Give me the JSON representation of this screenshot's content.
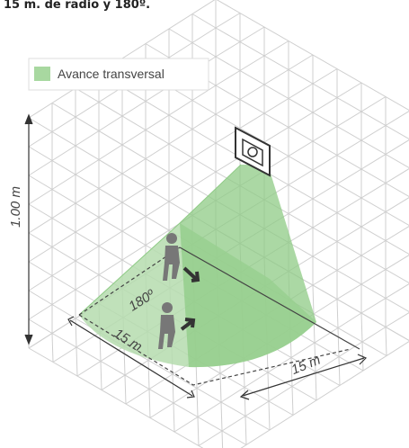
{
  "caption": "15 m. de radio y 180º.",
  "legend": {
    "label": "Avance transversal"
  },
  "labels": {
    "height": "1.00 m",
    "angle": "180º",
    "width": "15 m",
    "depth": "15 m"
  }
}
